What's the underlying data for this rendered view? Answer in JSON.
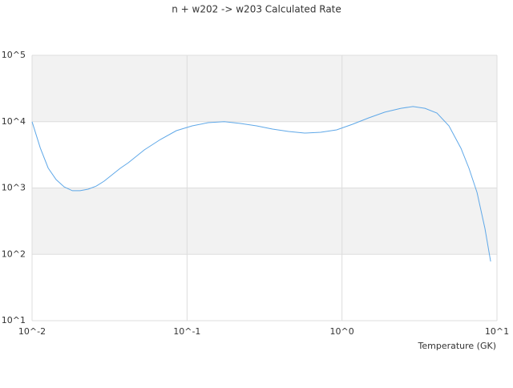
{
  "chart_data": {
    "type": "line",
    "title": "n + w202 -> w203 Calculated Rate",
    "x_label": "Temperature (GK)",
    "x_scale": "log",
    "y_scale": "log",
    "grid": true,
    "band_color": "#f2f2f2",
    "xlim": [
      0.01,
      10
    ],
    "ylim": [
      10,
      100000
    ],
    "xticks": [
      {
        "value": 0.01,
        "label": "10^-2"
      },
      {
        "value": 0.1,
        "label": "10^-1"
      },
      {
        "value": 1,
        "label": "10^0"
      },
      {
        "value": 10,
        "label": "10^1"
      }
    ],
    "yticks": [
      {
        "value": 10,
        "label": "10^1"
      },
      {
        "value": 100,
        "label": "10^2"
      },
      {
        "value": 1000,
        "label": "10^3"
      },
      {
        "value": 10000,
        "label": "10^4"
      },
      {
        "value": 100000,
        "label": "10^5"
      }
    ],
    "series": [
      {
        "color": "#5fa8e8",
        "x": [
          0.01,
          0.0113,
          0.0127,
          0.0143,
          0.0161,
          0.0182,
          0.0204,
          0.023,
          0.026,
          0.0292,
          0.037,
          0.0418,
          0.053,
          0.0673,
          0.0853,
          0.108,
          0.137,
          0.174,
          0.221,
          0.281,
          0.356,
          0.452,
          0.574,
          0.728,
          0.924,
          1.17,
          1.49,
          1.89,
          2.4,
          2.87,
          3.43,
          4.1,
          4.9,
          5.86,
          6.6,
          7.43,
          8.36,
          9.1
        ],
        "values": [
          10000,
          4000,
          2000,
          1340,
          1040,
          910,
          910,
          960,
          1070,
          1270,
          1980,
          2400,
          3750,
          5380,
          7310,
          8650,
          9670,
          10000,
          9400,
          8650,
          7720,
          7110,
          6730,
          6920,
          7520,
          9140,
          11400,
          13900,
          15900,
          16900,
          15900,
          13500,
          8650,
          3960,
          1980,
          857,
          245,
          78
        ]
      }
    ]
  }
}
